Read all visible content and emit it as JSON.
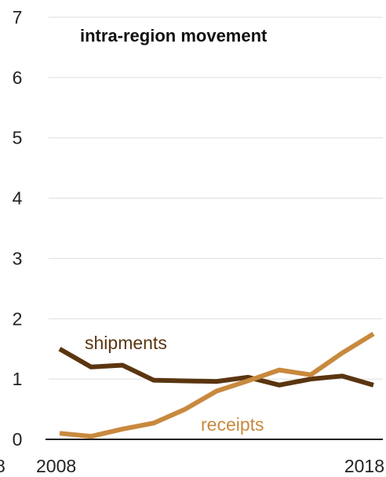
{
  "colors": {
    "shipments": "#5a3510",
    "receipts": "#c8893e",
    "grid": "#dddddd",
    "axis": "#222222"
  },
  "chart_data": {
    "type": "line",
    "title": "intra-region movement",
    "xlabel": "",
    "ylabel": "",
    "ylim": [
      0,
      7
    ],
    "xlim": [
      2008,
      2018
    ],
    "y_ticks": [
      "0",
      "1",
      "2",
      "3",
      "4",
      "5",
      "6",
      "7"
    ],
    "x_tick_labels": [
      "2008",
      "2018"
    ],
    "clipped_left_label": "8",
    "grid": true,
    "x": [
      2008,
      2009,
      2010,
      2011,
      2012,
      2013,
      2014,
      2015,
      2016,
      2017,
      2018
    ],
    "series": [
      {
        "name": "shipments",
        "values": [
          1.5,
          1.2,
          1.23,
          0.98,
          0.97,
          0.96,
          1.03,
          0.9,
          1.0,
          1.05,
          0.9
        ]
      },
      {
        "name": "receipts",
        "values": [
          0.1,
          0.05,
          0.17,
          0.27,
          0.5,
          0.8,
          0.97,
          1.15,
          1.07,
          1.43,
          1.75
        ]
      }
    ]
  }
}
